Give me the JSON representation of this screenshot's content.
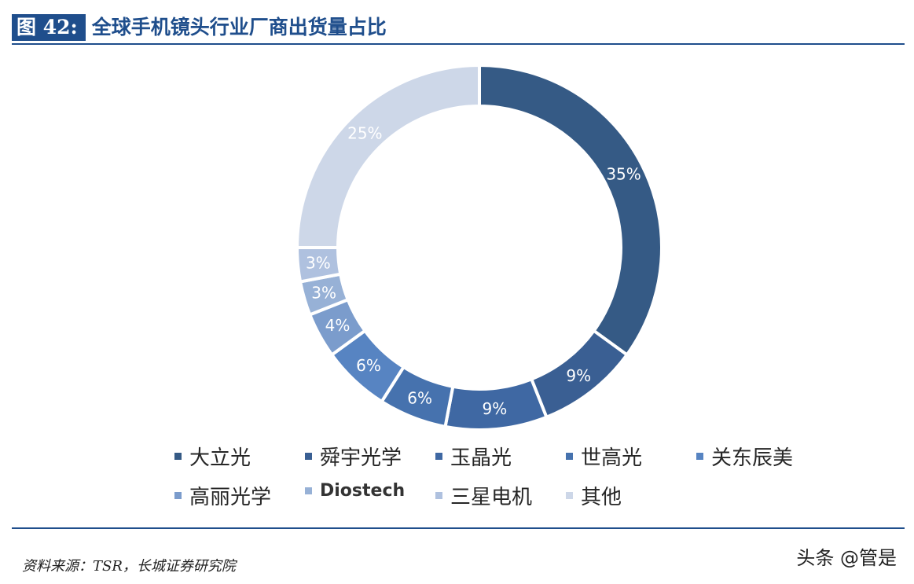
{
  "figure": {
    "number": "图 42:",
    "title": "全球手机镜头行业厂商出货量占比"
  },
  "chart_data": {
    "type": "pie",
    "variant": "donut",
    "title": "全球手机镜头行业厂商出货量占比",
    "categories": [
      "大立光",
      "舜宇光学",
      "玉晶光",
      "世高光",
      "关东辰美",
      "高丽光学",
      "Diostech",
      "三星电机",
      "其他"
    ],
    "values": [
      35,
      9,
      9,
      6,
      6,
      4,
      3,
      3,
      25
    ],
    "labels": [
      "35%",
      "9%",
      "9%",
      "6%",
      "6%",
      "4%",
      "3%",
      "3%",
      "25%"
    ],
    "colors": [
      "#355a85",
      "#3a5f93",
      "#3f68a3",
      "#4672ae",
      "#5784c2",
      "#7b9ccc",
      "#97b1d6",
      "#afc1df",
      "#cdd7e8"
    ],
    "legend_position": "bottom"
  },
  "source": "资料来源：TSR，长城证券研究院",
  "watermark": "头条 @管是"
}
